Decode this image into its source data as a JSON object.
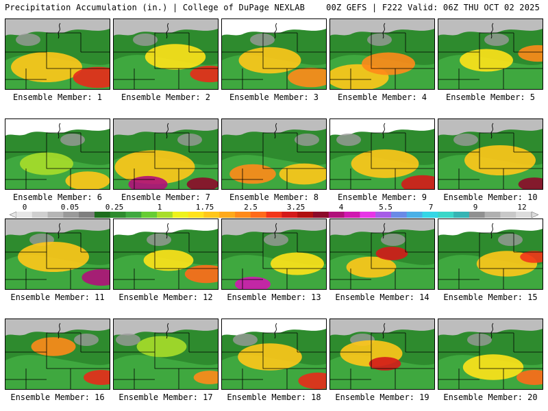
{
  "header": {
    "left": "Precipitation Accumulation (in.) | College of DuPage NEXLAB",
    "right": "00Z GEFS | F222 Valid: 06Z THU OCT 02 2025"
  },
  "colorbar": {
    "labels": [
      "0",
      "0.05",
      "0.25",
      "1",
      "1.75",
      "2.5",
      "3.25",
      "4",
      "5.5",
      "7",
      "9",
      "12"
    ],
    "colors": [
      "#e6e6e6",
      "#cfcfcf",
      "#b5b5b5",
      "#9a9a9a",
      "#7f7f7f",
      "#1e6e1e",
      "#2e8b2e",
      "#3fa83f",
      "#66cc33",
      "#a8dd2a",
      "#eef21c",
      "#ffe21a",
      "#ffc61a",
      "#ffa91a",
      "#ff8a1a",
      "#ff6a1a",
      "#f2361a",
      "#d41a1a",
      "#b01010",
      "#8c0a2a",
      "#b0107a",
      "#d018b0",
      "#e636e6",
      "#a65ce6",
      "#6a8ae6",
      "#4ab0e6",
      "#34d6e6",
      "#3ad6c8",
      "#36b4b4",
      "#909090",
      "#b0b0b0",
      "#c8c8c8",
      "#dcdcdc"
    ]
  },
  "members": [
    {
      "label": "Ensemble Member: 1"
    },
    {
      "label": "Ensemble Member: 2"
    },
    {
      "label": "Ensemble Member: 3"
    },
    {
      "label": "Ensemble Member: 4"
    },
    {
      "label": "Ensemble Member: 5"
    },
    {
      "label": "Ensemble Member: 6"
    },
    {
      "label": "Ensemble Member: 7"
    },
    {
      "label": "Ensemble Member: 8"
    },
    {
      "label": "Ensemble Member: 9"
    },
    {
      "label": "Ensemble Member: 10"
    },
    {
      "label": "Ensemble Member: 11"
    },
    {
      "label": "Ensemble Member: 12"
    },
    {
      "label": "Ensemble Member: 13"
    },
    {
      "label": "Ensemble Member: 14"
    },
    {
      "label": "Ensemble Member: 15"
    },
    {
      "label": "Ensemble Member: 16"
    },
    {
      "label": "Ensemble Member: 17"
    },
    {
      "label": "Ensemble Member: 18"
    },
    {
      "label": "Ensemble Member: 19"
    },
    {
      "label": "Ensemble Member: 20"
    }
  ]
}
